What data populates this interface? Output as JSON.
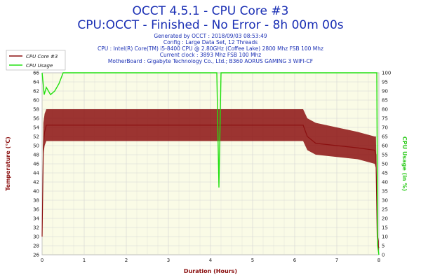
{
  "colors": {
    "title": "#1a2fb4",
    "temp_series": "#8b1010",
    "usage_series": "#22e010",
    "plot_bg": "#fafbe6",
    "grid": "#d4d4d4",
    "axis_label": "#8b1010",
    "right_axis_label": "#33cc22",
    "x_axis_label": "#8b1010"
  },
  "chart_data": {
    "type": "line",
    "title": "OCCT 4.5.1 - CPU Core #3",
    "subtitle": "CPU:OCCT - Finished - No Error - 8h 00m 00s",
    "info_lines": [
      "Generated by OCCT : 2018/09/03 08:53:49",
      "Config : Large Data Set, 12 Threads",
      "CPU : Intel(R) Core(TM) i5-8400 CPU @ 2.80GHz (Coffee Lake) 2800 Mhz FSB 100 Mhz",
      "Current clock : 3893 Mhz FSB 100 Mhz",
      "MotherBoard : Gigabyte Technology Co., Ltd.; B360 AORUS GAMING 3 WIFI-CF"
    ],
    "xlabel": "Duration (Hours)",
    "ylabel": "Temperature (°C)",
    "ylabel_right": "CPU Usage (in %)",
    "xlim": [
      0,
      8
    ],
    "ylim": [
      26,
      66
    ],
    "ylim_right": [
      0,
      100
    ],
    "x_ticks": [
      "0",
      "1",
      "2",
      "3",
      "4",
      "5",
      "6",
      "7",
      "8"
    ],
    "y_ticks": [
      "26",
      "28",
      "30",
      "32",
      "34",
      "36",
      "38",
      "40",
      "42",
      "44",
      "46",
      "48",
      "50",
      "52",
      "54",
      "56",
      "58",
      "60",
      "62",
      "64",
      "66"
    ],
    "y_ticks_right": [
      "0",
      "5",
      "10",
      "15",
      "20",
      "25",
      "30",
      "35",
      "40",
      "45",
      "50",
      "55",
      "60",
      "65",
      "70",
      "75",
      "80",
      "85",
      "90",
      "95",
      "100"
    ],
    "grid": true,
    "legend_position": "top-left",
    "series": [
      {
        "name": "CPU Core #3",
        "axis": "left",
        "x": [
          0,
          0.03,
          0.06,
          0.1,
          0.2,
          0.5,
          1.0,
          1.5,
          2.0,
          2.5,
          3.0,
          3.5,
          4.0,
          4.2,
          4.5,
          5.0,
          5.5,
          6.0,
          6.2,
          6.3,
          6.5,
          7.0,
          7.5,
          7.9,
          7.93,
          7.96,
          7.98,
          8.0
        ],
        "values": [
          30,
          50,
          53,
          54.5,
          54.5,
          54.5,
          54.5,
          54.5,
          54.5,
          54.5,
          54.5,
          54.5,
          54.5,
          54.5,
          54.5,
          54.5,
          54.5,
          54.5,
          54.5,
          52,
          50.5,
          50,
          49.5,
          49,
          48,
          30,
          28,
          27.5
        ],
        "band_min": [
          30,
          48,
          50,
          51,
          51,
          51,
          51,
          51,
          51,
          51,
          51,
          51,
          51,
          51,
          51,
          51,
          51,
          51,
          51,
          49,
          48,
          47.5,
          47,
          46,
          45,
          29,
          27,
          27
        ],
        "band_max": [
          32,
          55,
          57,
          58,
          58,
          58,
          58,
          58,
          58,
          58,
          58,
          58,
          58,
          58,
          58,
          58,
          58,
          58,
          58,
          56,
          55,
          54,
          53,
          52,
          52,
          35,
          30,
          29
        ]
      },
      {
        "name": "CPU Usage",
        "axis": "right",
        "x": [
          0,
          0.05,
          0.1,
          0.2,
          0.3,
          0.4,
          0.5,
          1.0,
          2.0,
          3.0,
          4.0,
          4.15,
          4.2,
          4.25,
          5.0,
          6.0,
          7.0,
          7.8,
          7.9,
          7.95,
          7.97,
          8.0
        ],
        "values": [
          100,
          88,
          92,
          88,
          90,
          94,
          100,
          100,
          100,
          100,
          100,
          100,
          37,
          100,
          100,
          100,
          100,
          100,
          100,
          100,
          5,
          0
        ]
      }
    ]
  }
}
